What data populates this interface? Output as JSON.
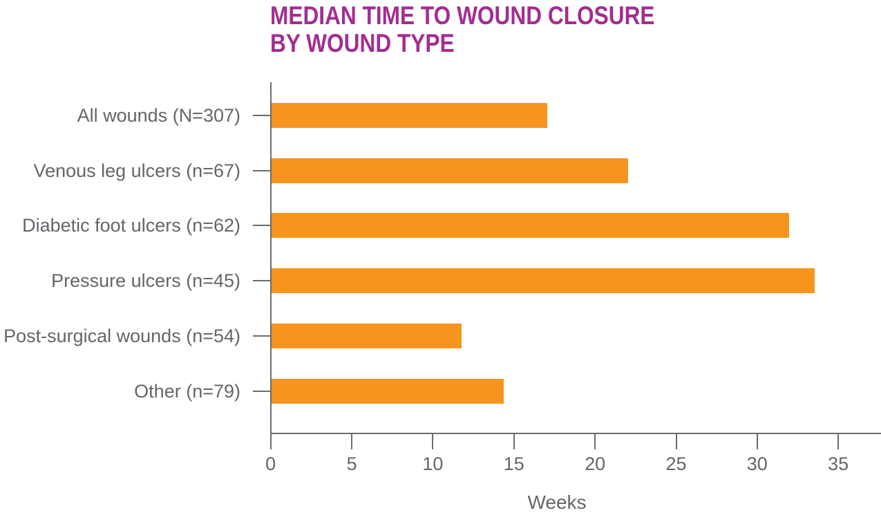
{
  "chart_data": {
    "type": "bar",
    "orientation": "horizontal",
    "title": "MEDIAN TIME TO WOUND CLOSURE BY WOUND TYPE",
    "title_lines": [
      "MEDIAN TIME TO WOUND CLOSURE",
      "BY WOUND TYPE"
    ],
    "categories": [
      "All wounds (N=307)",
      "Venous leg ulcers (n=67)",
      "Diabetic foot ulcers (n=62)",
      "Pressure ulcers (n=45)",
      "Post-surgical wounds (n=54)",
      "Other (n=79)"
    ],
    "values": [
      17,
      22,
      31.9,
      33.5,
      11.7,
      14.3
    ],
    "xlabel": "Weeks",
    "xlim": [
      0,
      35
    ],
    "xticks": [
      0,
      5,
      10,
      15,
      20,
      25,
      30,
      35
    ],
    "grid": false,
    "legend": false,
    "colors": {
      "bar": "#F7941E",
      "title": "#A32D90",
      "label": "#63666A",
      "axis": "#696C6E",
      "background": "#FFFFFF"
    }
  }
}
